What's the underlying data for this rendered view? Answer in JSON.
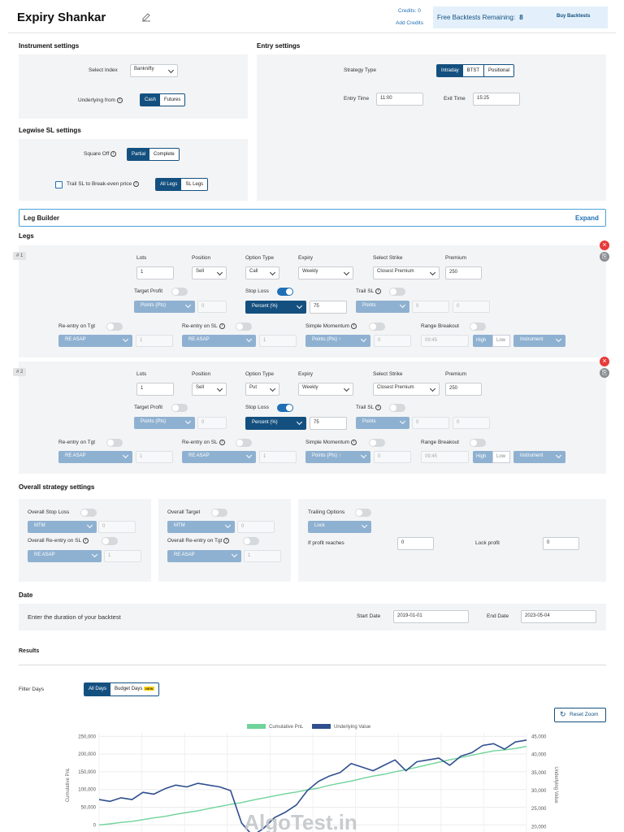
{
  "header": {
    "title": "Expiry Shankar",
    "credits": "Credits: 0",
    "add_credits": "Add Credits",
    "free_backtests_label": "Free Backtests Remaining:",
    "free_backtests_count": "8",
    "buy_backtests": "Buy Backtests"
  },
  "instrument": {
    "heading": "Instrument settings",
    "select_index_label": "Select Index",
    "select_index_value": "Banknifty",
    "underlying_label": "Underlying from",
    "underlying_options": [
      "Cash",
      "Futures"
    ],
    "underlying_selected": "Cash"
  },
  "legwise": {
    "heading": "Legwise SL settings",
    "square_off_label": "Square Off",
    "square_off_options": [
      "Partial",
      "Complete"
    ],
    "trail_label": "Trail SL to Break-even price",
    "trail_options": [
      "All Legs",
      "SL Legs"
    ]
  },
  "entry": {
    "heading": "Entry settings",
    "strategy_type_label": "Strategy Type",
    "strategy_options": [
      "Intraday",
      "BTST",
      "Positional"
    ],
    "entry_time_label": "Entry Time",
    "entry_time": "11:00",
    "exit_time_label": "Exit Time",
    "exit_time": "15:25"
  },
  "leg_builder": {
    "title": "Leg Builder",
    "expand": "Expand"
  },
  "legs_heading": "Legs",
  "leg_labels": {
    "lots": "Lots",
    "position": "Position",
    "option_type": "Option Type",
    "expiry": "Expiry",
    "select_strike": "Select Strike",
    "premium": "Premium",
    "target_profit": "Target Profit",
    "stop_loss": "Stop Loss",
    "trail_sl": "Trail SL",
    "reentry_tgt": "Re-entry on Tgt",
    "reentry_sl": "Re-entry on SL",
    "simple_momentum": "Simple Momentum",
    "range_breakout": "Range Breakout",
    "points_pts": "Points (Pts)",
    "percent": "Percent (%)",
    "points": "Points",
    "re_asap": "RE ASAP",
    "points_pts_up": "Points (Pts) ↑",
    "high": "High",
    "low": "Low",
    "instrument": "Instrument"
  },
  "legs": [
    {
      "num": "# 1",
      "lots": "1",
      "position": "Sell",
      "option_type": "Call",
      "expiry": "Weekly",
      "strike": "Closest Premium",
      "premium": "250",
      "tp_value": "0",
      "sl_value": "75",
      "trail_x": "0",
      "trail_y": "0",
      "re_tgt": "1",
      "re_sl": "1",
      "momentum": "0",
      "rb_time": "09:45"
    },
    {
      "num": "# 2",
      "lots": "1",
      "position": "Sell",
      "option_type": "Put",
      "expiry": "Weekly",
      "strike": "Closest Premium",
      "premium": "250",
      "tp_value": "0",
      "sl_value": "75",
      "trail_x": "0",
      "trail_y": "0",
      "re_tgt": "1",
      "re_sl": "1",
      "momentum": "0",
      "rb_time": "09:45"
    }
  ],
  "overall": {
    "heading": "Overall strategy settings",
    "stop_loss_label": "Overall Stop Loss",
    "stop_loss_mode": "MTM",
    "stop_loss_value": "0",
    "reentry_sl_label": "Overall Re-entry on SL",
    "reentry_sl_mode": "RE ASAP",
    "reentry_sl_value": "1",
    "target_label": "Overall Target",
    "target_mode": "MTM",
    "target_value": "0",
    "reentry_tgt_label": "Overall Re-entry on Tgt",
    "reentry_tgt_mode": "RE ASAP",
    "reentry_tgt_value": "1",
    "trailing_label": "Trailing Options",
    "trailing_mode": "Lock",
    "profit_reaches_label": "If profit reaches",
    "profit_reaches_value": "0",
    "lock_profit_label": "Lock profit",
    "lock_profit_value": "0"
  },
  "date": {
    "heading": "Date",
    "prompt": "Enter the duration of your backtest",
    "start_label": "Start Date",
    "start_value": "2019-01-01",
    "end_label": "End Date",
    "end_value": "2023-05-04"
  },
  "results": {
    "heading": "Results",
    "filter_label": "Filter Days",
    "filter_options": [
      "All Days",
      "Budget Days"
    ],
    "new_badge": "NEW",
    "reset_zoom": "Reset Zoom",
    "watermark": "AlgoTest.in"
  },
  "colors": {
    "primary": "#14507f",
    "accent": "#1f6fb5",
    "pnl": "#6fd39a",
    "underlying": "#2f4f8f",
    "delete": "#e83a3a"
  },
  "chart_data": {
    "type": "line",
    "legend": [
      "Cumulative PnL",
      "Underlying Value"
    ],
    "ylabel": "Cumulative PnL",
    "y2label": "Underlying Value",
    "yticks": [
      "250,000",
      "200,000",
      "150,000",
      "100,000",
      "50,000",
      "0"
    ],
    "y2ticks": [
      "45,000",
      "40,000",
      "35,000",
      "30,000",
      "25,000",
      "20,000"
    ],
    "ylim": [
      -20000,
      260000
    ],
    "y2lim": [
      18500,
      46000
    ],
    "series": [
      {
        "name": "Cumulative PnL",
        "axis": "left",
        "values": [
          0,
          3000,
          7000,
          10000,
          15000,
          20000,
          24000,
          30000,
          35000,
          40000,
          46000,
          52000,
          58000,
          63000,
          70000,
          76000,
          82000,
          88000,
          93000,
          99000,
          104000,
          112000,
          118000,
          124000,
          131000,
          138000,
          143000,
          150000,
          156000,
          163000,
          170000,
          177000,
          184000,
          190000,
          197000,
          203000,
          209000,
          212000,
          216000,
          222000
        ]
      },
      {
        "name": "Underlying Value",
        "axis": "right",
        "values": [
          27500,
          27000,
          28000,
          27500,
          29500,
          29000,
          30500,
          31500,
          31000,
          32000,
          31500,
          31000,
          30000,
          21000,
          17500,
          19500,
          22500,
          24000,
          26000,
          30000,
          32500,
          34000,
          35000,
          37500,
          36500,
          35500,
          37000,
          38500,
          35500,
          38000,
          38500,
          39000,
          37000,
          39500,
          40500,
          42500,
          43000,
          41500,
          43500,
          44000
        ]
      }
    ]
  }
}
